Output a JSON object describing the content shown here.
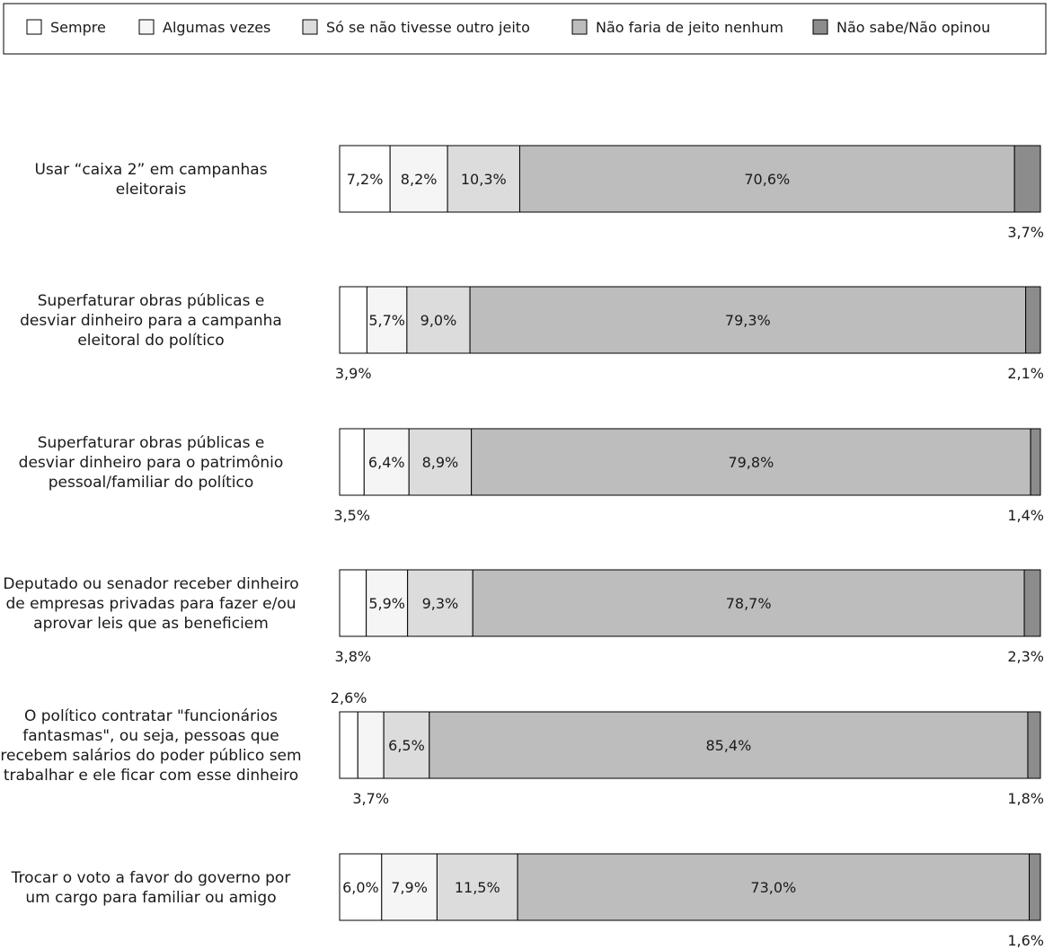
{
  "chart_data": {
    "type": "bar",
    "orientation": "horizontal",
    "stacked": true,
    "legend_position": "top",
    "grid": false,
    "xlim": [
      0,
      100
    ],
    "series": [
      {
        "name": "Sempre",
        "color": "#ffffff",
        "values": [
          7.2,
          3.9,
          3.5,
          3.8,
          2.6,
          6.0
        ],
        "labels": [
          "7,2%",
          "3,9%",
          "3,5%",
          "3,8%",
          "2,6%",
          "6,0%"
        ]
      },
      {
        "name": "Algumas vezes",
        "color": "#f5f5f5",
        "values": [
          8.2,
          5.7,
          6.4,
          5.9,
          3.7,
          7.9
        ],
        "labels": [
          "8,2%",
          "5,7%",
          "6,4%",
          "5,9%",
          "3,7%",
          "7,9%"
        ]
      },
      {
        "name": "Só se não tivesse outro jeito",
        "color": "#dcdcdc",
        "values": [
          10.3,
          9.0,
          8.9,
          9.3,
          6.5,
          11.5
        ],
        "labels": [
          "10,3%",
          "9,0%",
          "8,9%",
          "9,3%",
          "6,5%",
          "11,5%"
        ]
      },
      {
        "name": "Não faria de jeito nenhum",
        "color": "#bdbdbd",
        "values": [
          70.6,
          79.3,
          79.8,
          78.7,
          85.4,
          73.0
        ],
        "labels": [
          "70,6%",
          "79,3%",
          "79,8%",
          "78,7%",
          "85,4%",
          "73,0%"
        ]
      },
      {
        "name": "Não sabe/Não opinou",
        "color": "#8c8c8c",
        "values": [
          3.7,
          2.1,
          1.4,
          2.3,
          1.8,
          1.6
        ],
        "labels": [
          "3,7%",
          "2,1%",
          "1,4%",
          "2,3%",
          "1,8%",
          "1,6%"
        ]
      }
    ],
    "categories": [
      [
        "Usar “caixa 2” em campanhas",
        "eleitorais"
      ],
      [
        "Superfaturar obras públicas e",
        "desviar dinheiro para a campanha",
        "eleitoral do político"
      ],
      [
        "Superfaturar obras públicas e",
        "desviar dinheiro para o  patrimônio",
        "pessoal/familiar do político"
      ],
      [
        "Deputado ou senador receber dinheiro",
        "de empresas privadas para fazer e/ou",
        "aprovar leis que as beneficiem"
      ],
      [
        "O político contratar \"funcionários",
        "fantasmas\", ou seja, pessoas que",
        "recebem salários do poder público sem",
        "trabalhar e ele ficar com esse dinheiro"
      ],
      [
        "Trocar o voto a favor do governo por",
        "um cargo para familiar ou amigo"
      ]
    ],
    "label_positions": [
      [
        "inside",
        "inside",
        "inside",
        "inside",
        "below"
      ],
      [
        "below",
        "inside",
        "inside",
        "inside",
        "below"
      ],
      [
        "below",
        "inside",
        "inside",
        "inside",
        "below"
      ],
      [
        "below",
        "inside",
        "inside",
        "inside",
        "below"
      ],
      [
        "above",
        "below",
        "inside",
        "inside",
        "below"
      ],
      [
        "inside",
        "inside",
        "inside",
        "inside",
        "below"
      ]
    ]
  }
}
